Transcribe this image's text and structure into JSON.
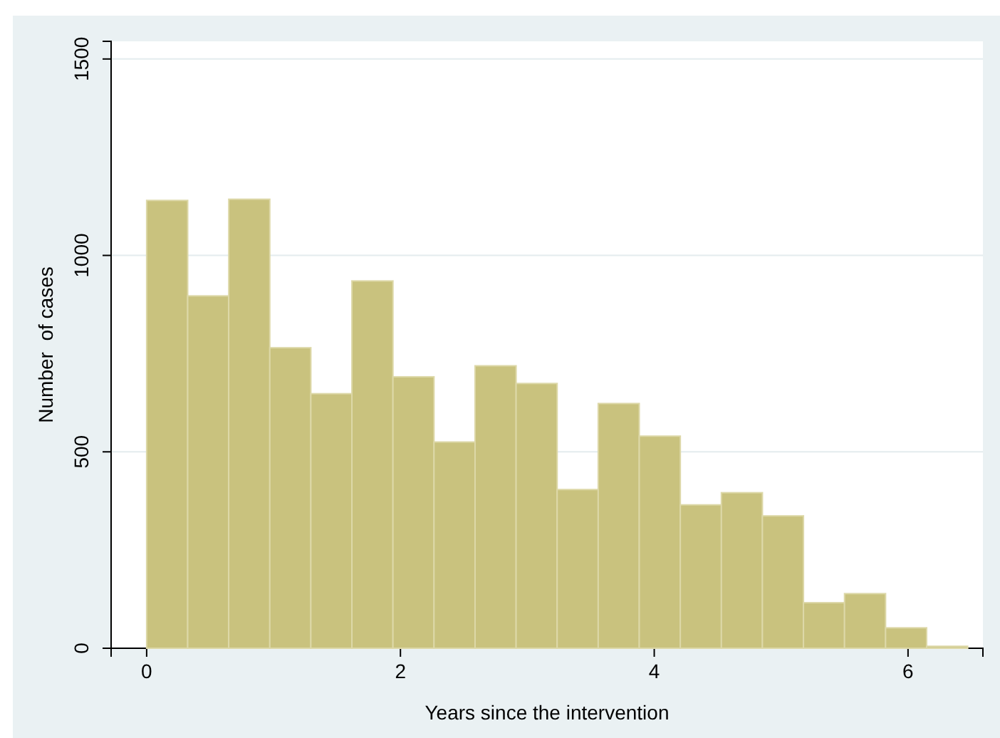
{
  "chart_data": {
    "type": "histogram",
    "xlabel": "Years since the intervention",
    "ylabel": "Number  of cases",
    "bins": [
      0,
      0.3235,
      0.647,
      0.9705,
      1.294,
      1.6175,
      1.941,
      2.2645,
      2.588,
      2.9115,
      3.235,
      3.5585,
      3.882,
      4.2055,
      4.529,
      4.8525,
      5.176,
      5.4995,
      5.823,
      6.1465,
      6.47
    ],
    "values": [
      1140,
      897,
      1143,
      765,
      648,
      935,
      691,
      525,
      719,
      674,
      404,
      623,
      540,
      365,
      396,
      337,
      116,
      139,
      52,
      5
    ],
    "color": "#c9c27e",
    "xlim": [
      -0.28,
      6.59
    ],
    "xticks": [
      0,
      2,
      4,
      6
    ],
    "ylim": [
      0,
      1545
    ],
    "yticks": [
      0,
      500,
      1000,
      1500
    ],
    "grid": "y"
  }
}
